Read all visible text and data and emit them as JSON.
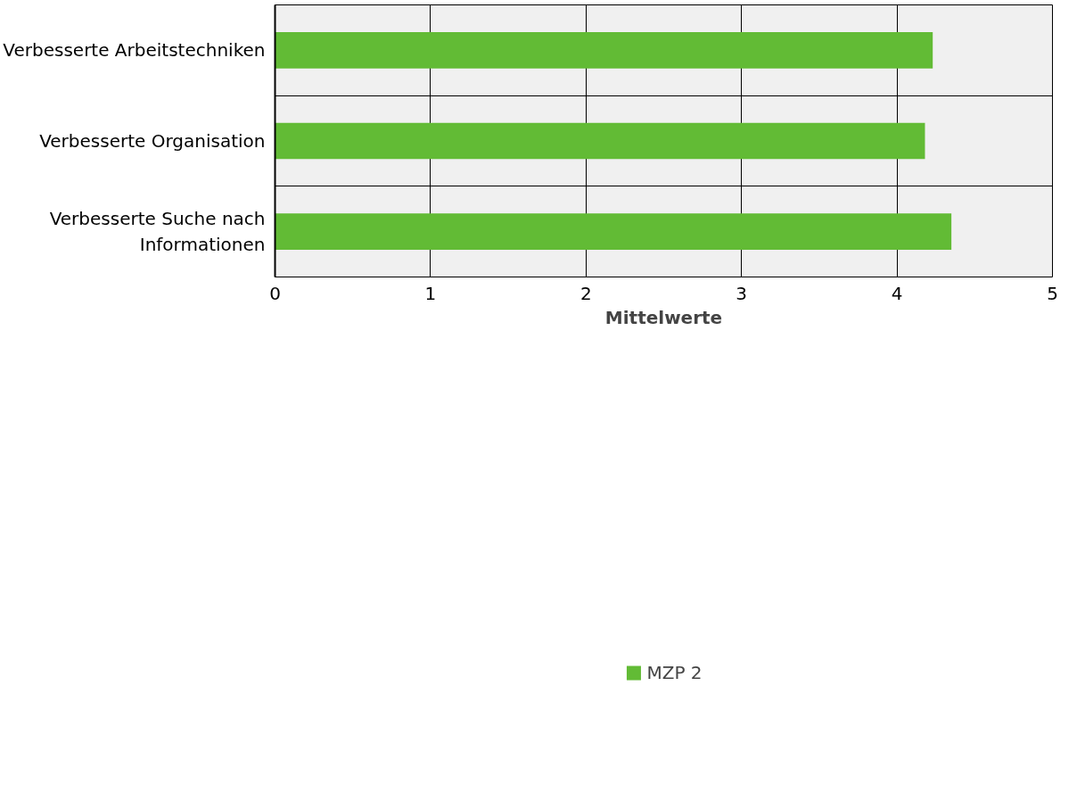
{
  "chart_data": {
    "type": "bar",
    "orientation": "horizontal",
    "categories": [
      "Verbesserte Arbeitstechniken",
      "Verbesserte Organisation",
      "Verbesserte Suche nach\nInformationen"
    ],
    "series": [
      {
        "name": "MZP 2",
        "color": "#62bb35",
        "values": [
          4.23,
          4.18,
          4.35
        ]
      }
    ],
    "xlabel": "Mittelwerte",
    "xlim": [
      0,
      5
    ],
    "xticks": [
      0,
      1,
      2,
      3,
      4,
      5
    ],
    "grid": true,
    "legend": "bottom"
  }
}
